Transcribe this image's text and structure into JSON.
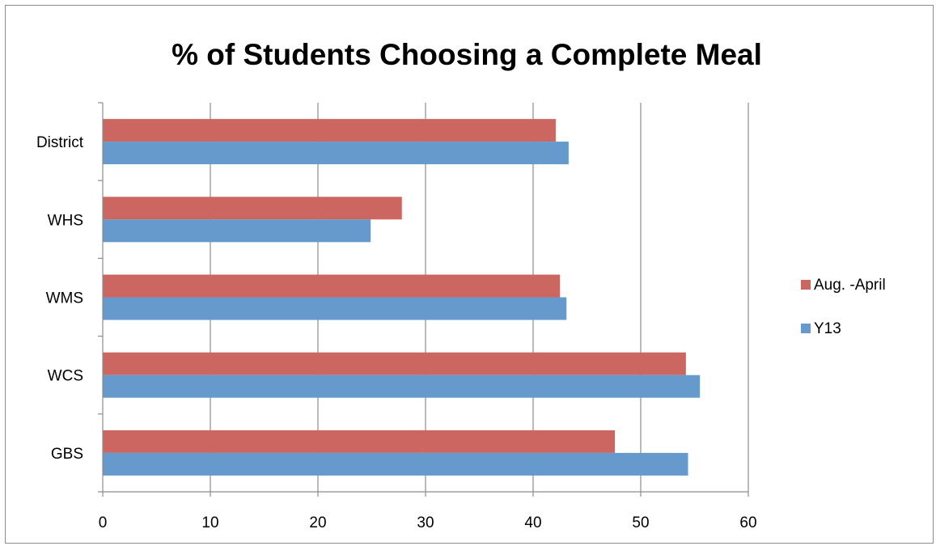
{
  "chart_data": {
    "type": "bar",
    "orientation": "horizontal",
    "title": "% of Students Choosing a Complete Meal",
    "xlabel": "",
    "ylabel": "",
    "categories": [
      "GBS",
      "WCS",
      "WMS",
      "WHS",
      "District"
    ],
    "series": [
      {
        "name": "Y13",
        "color": "#6699cc",
        "values": [
          54.4,
          55.5,
          43.1,
          24.9,
          43.3
        ]
      },
      {
        "name": "Aug. -April",
        "color": "#cc6660",
        "values": [
          47.6,
          54.2,
          42.5,
          27.8,
          42.1
        ]
      }
    ],
    "xlim": [
      0,
      60
    ],
    "x_ticks": [
      0,
      10,
      20,
      30,
      40,
      50,
      60
    ],
    "x_tick_labels": [
      "0",
      "10",
      "20",
      "30",
      "40",
      "50",
      "60"
    ],
    "grid": "vertical",
    "legend_position": "right",
    "legend_order": [
      "Aug. -April",
      "Y13"
    ]
  }
}
